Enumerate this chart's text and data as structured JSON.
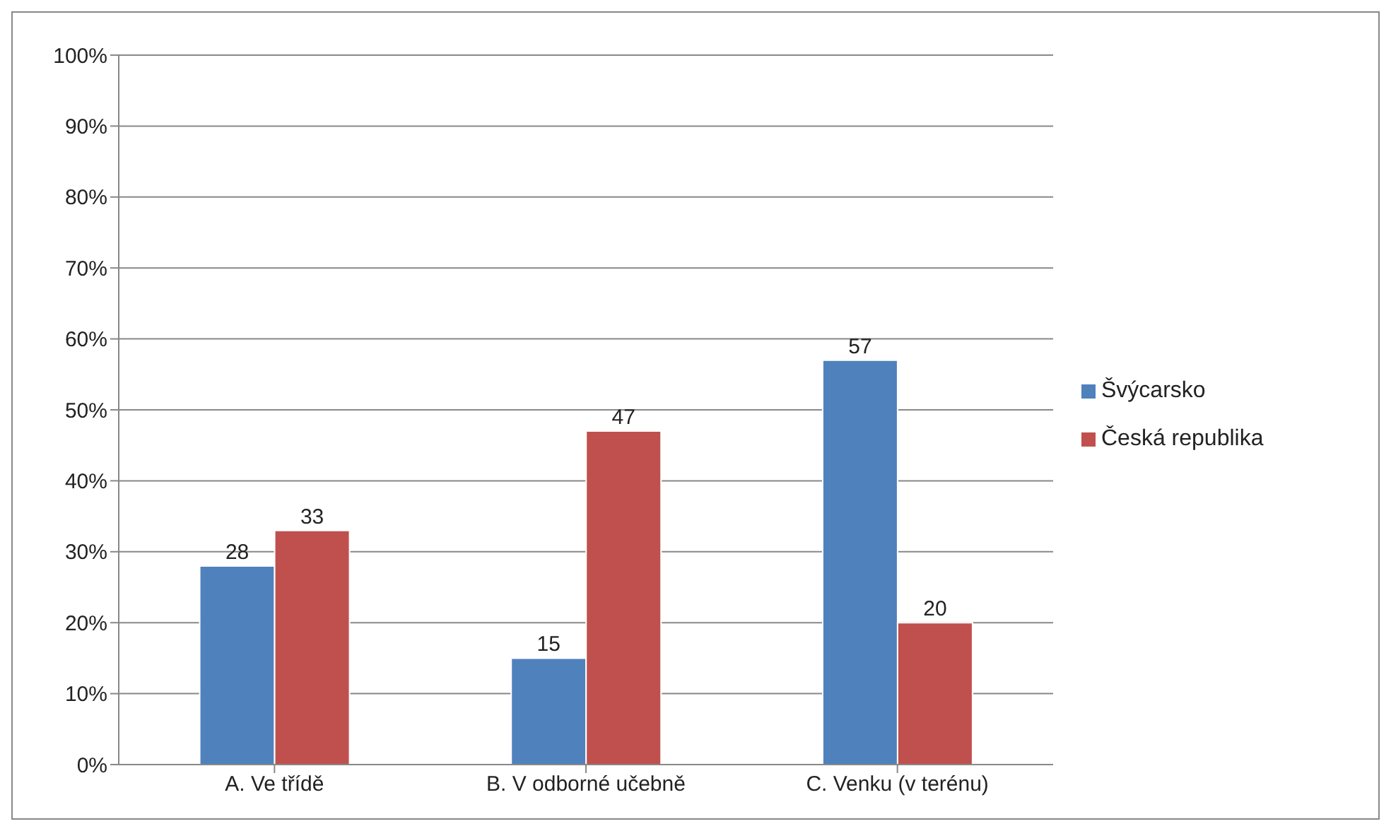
{
  "chart_data": {
    "type": "bar",
    "categories": [
      "A. Ve třídě",
      "B. V odborné učebně",
      "C. Venku (v terénu)"
    ],
    "series": [
      {
        "name": "Švýcarsko",
        "color": "#4f81bd",
        "values": [
          28,
          15,
          57
        ]
      },
      {
        "name": "Česká republika",
        "color": "#c0504d",
        "values": [
          33,
          47,
          20
        ]
      }
    ],
    "ylim": [
      0,
      100
    ],
    "yticks": [
      {
        "value": 0,
        "label": "0%"
      },
      {
        "value": 10,
        "label": "10%"
      },
      {
        "value": 20,
        "label": "20%"
      },
      {
        "value": 30,
        "label": "30%"
      },
      {
        "value": 40,
        "label": "40%"
      },
      {
        "value": 50,
        "label": "50%"
      },
      {
        "value": 60,
        "label": "60%"
      },
      {
        "value": 70,
        "label": "70%"
      },
      {
        "value": 80,
        "label": "80%"
      },
      {
        "value": 90,
        "label": "90%"
      },
      {
        "value": 100,
        "label": "100%"
      }
    ],
    "grid": "y",
    "legend": "right",
    "data_labels": true
  }
}
